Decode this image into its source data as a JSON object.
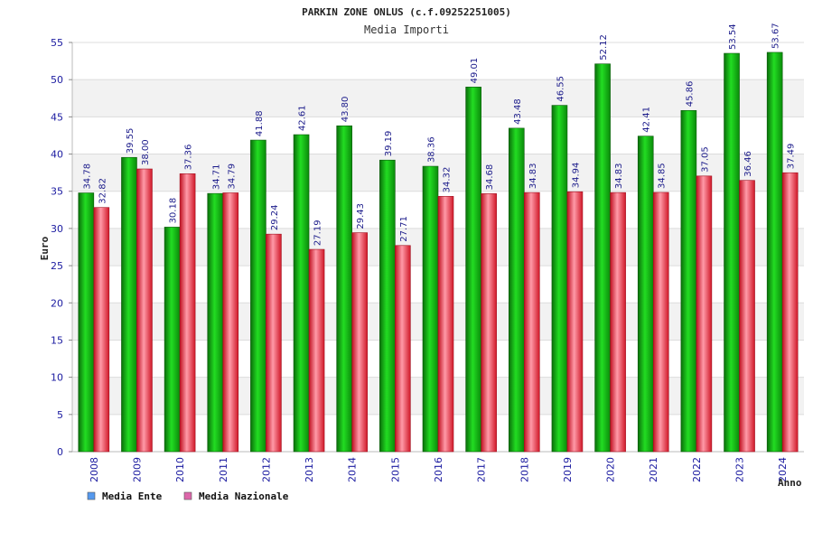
{
  "chart_data": {
    "type": "bar",
    "title": "PARKIN ZONE ONLUS (c.f.09252251005)",
    "subtitle": "Media Importi",
    "ylabel": "Euro",
    "xlabel": "Anno",
    "ylim": [
      0,
      55
    ],
    "yticks": [
      0,
      5,
      10,
      15,
      20,
      25,
      30,
      35,
      40,
      45,
      50,
      55
    ],
    "categories": [
      "2008",
      "2009",
      "2010",
      "2011",
      "2012",
      "2013",
      "2014",
      "2015",
      "2016",
      "2017",
      "2018",
      "2019",
      "2020",
      "2021",
      "2022",
      "2023",
      "2024"
    ],
    "series": [
      {
        "name": "Media Ente",
        "color": "#1aa01a",
        "values": [
          34.78,
          39.55,
          30.18,
          34.71,
          41.88,
          42.61,
          43.8,
          39.19,
          38.36,
          49.01,
          43.48,
          46.55,
          52.12,
          42.41,
          45.86,
          53.54,
          53.67
        ],
        "labels": [
          "34.78",
          "39.55",
          "30.18",
          "34.71",
          "41.88",
          "42.61",
          "43.80",
          "39.19",
          "38.36",
          "49.01",
          "43.48",
          "46.55",
          "52.12",
          "42.41",
          "45.86",
          "53.54",
          "53.67"
        ]
      },
      {
        "name": "Media Nazionale",
        "color": "#e02030",
        "values": [
          32.82,
          38.0,
          37.36,
          34.79,
          29.24,
          27.19,
          29.43,
          27.71,
          34.32,
          34.68,
          34.83,
          34.94,
          34.83,
          34.85,
          37.05,
          36.46,
          37.49
        ],
        "labels": [
          "32.82",
          "38.00",
          "37.36",
          "34.79",
          "29.24",
          "27.19",
          "29.43",
          "27.71",
          "34.32",
          "34.68",
          "34.83",
          "34.94",
          "34.83",
          "34.85",
          "37.05",
          "36.46",
          "37.49"
        ]
      }
    ],
    "legend": [
      {
        "name": "Media Ente",
        "swatch_color": "#5599ee"
      },
      {
        "name": "Media Nazionale",
        "swatch_color": "#dd66aa"
      }
    ],
    "grid": true,
    "legend_position": "bottom-left"
  }
}
